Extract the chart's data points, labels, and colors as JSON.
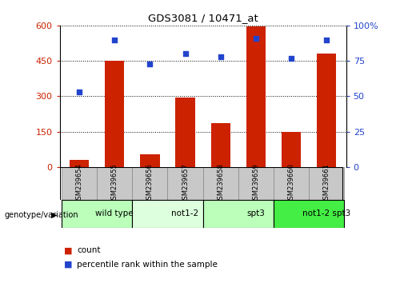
{
  "title": "GDS3081 / 10471_at",
  "samples": [
    "GSM239654",
    "GSM239655",
    "GSM239656",
    "GSM239657",
    "GSM239658",
    "GSM239659",
    "GSM239660",
    "GSM239661"
  ],
  "counts": [
    30,
    450,
    55,
    295,
    185,
    595,
    148,
    480
  ],
  "percentile_ranks": [
    53,
    90,
    73,
    80,
    78,
    91,
    77,
    90
  ],
  "count_ylim": [
    0,
    600
  ],
  "count_yticks": [
    0,
    150,
    300,
    450,
    600
  ],
  "percentile_ylim": [
    0,
    100
  ],
  "percentile_yticks": [
    0,
    25,
    50,
    75,
    100
  ],
  "bar_color": "#cc2200",
  "dot_color": "#2244cc",
  "groups": [
    {
      "label": "wild type",
      "start": 0,
      "end": 2,
      "color": "#bbffbb"
    },
    {
      "label": "not1-2",
      "start": 2,
      "end": 4,
      "color": "#ddffdd"
    },
    {
      "label": "spt3",
      "start": 4,
      "end": 6,
      "color": "#bbffbb"
    },
    {
      "label": "not1-2 spt3",
      "start": 6,
      "end": 8,
      "color": "#44ee44"
    }
  ],
  "group_label_prefix": "genotype/variation",
  "tick_bg_color": "#c8c8c8",
  "legend_count_color": "#cc2200",
  "legend_pct_color": "#2244cc",
  "legend_count_label": "count",
  "legend_pct_label": "percentile rank within the sample",
  "ylabel_left_color": "#cc2200",
  "ylabel_right_color": "#2244cc",
  "left_ytick_labels": [
    "0",
    "150",
    "300",
    "450",
    "600"
  ],
  "right_ytick_labels": [
    "0",
    "25",
    "50",
    "75",
    "100%"
  ]
}
